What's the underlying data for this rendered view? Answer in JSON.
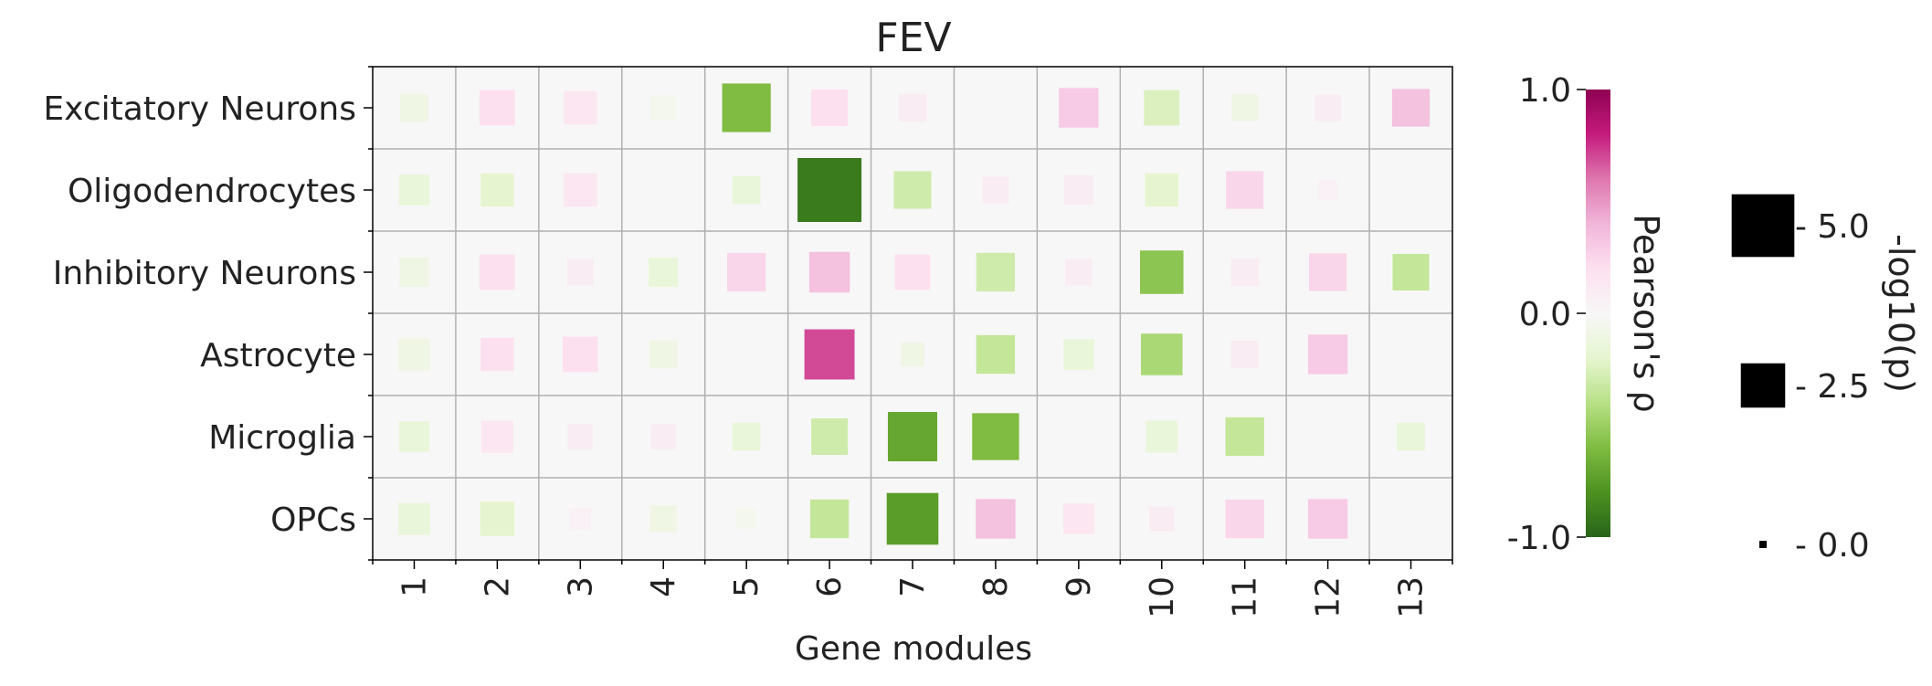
{
  "chart_data": {
    "type": "heatmap",
    "title": "FEV",
    "xlabel": "Gene modules",
    "rows": [
      "Excitatory Neurons",
      "Oligodendrocytes",
      "Inhibitory Neurons",
      "Astrocyte",
      "Microglia",
      "OPCs"
    ],
    "columns": [
      "1",
      "2",
      "3",
      "4",
      "5",
      "6",
      "7",
      "8",
      "9",
      "10",
      "11",
      "12",
      "13"
    ],
    "rho": [
      [
        -0.1,
        0.2,
        0.15,
        -0.05,
        -0.6,
        0.2,
        0.1,
        0.0,
        0.3,
        -0.25,
        -0.1,
        0.1,
        0.35
      ],
      [
        -0.15,
        -0.2,
        0.15,
        0.0,
        -0.15,
        -0.9,
        -0.3,
        0.1,
        0.1,
        -0.2,
        0.25,
        0.05,
        0.0
      ],
      [
        -0.1,
        0.2,
        0.1,
        -0.15,
        0.25,
        0.35,
        0.2,
        -0.3,
        0.1,
        -0.55,
        0.1,
        0.25,
        -0.35
      ],
      [
        -0.1,
        0.2,
        0.2,
        -0.1,
        0.0,
        0.7,
        -0.1,
        -0.35,
        -0.15,
        -0.45,
        0.1,
        0.3,
        0.0
      ],
      [
        -0.15,
        0.15,
        0.1,
        0.1,
        -0.15,
        -0.3,
        -0.7,
        -0.6,
        0.0,
        -0.15,
        -0.35,
        0.0,
        -0.15
      ],
      [
        -0.15,
        -0.2,
        0.05,
        -0.1,
        -0.05,
        -0.35,
        -0.75,
        0.35,
        0.15,
        0.1,
        0.25,
        0.3,
        0.0
      ]
    ],
    "neg_log10_p": [
      [
        1.0,
        1.6,
        1.4,
        0.8,
        3.0,
        1.7,
        1.0,
        0.0,
        2.0,
        1.6,
        0.9,
        0.9,
        1.8
      ],
      [
        1.2,
        1.4,
        1.4,
        0.2,
        1.0,
        5.2,
        1.8,
        0.9,
        1.1,
        1.4,
        1.8,
        0.5,
        0.0
      ],
      [
        1.1,
        1.6,
        0.9,
        1.1,
        1.9,
        2.1,
        1.6,
        1.9,
        0.9,
        2.4,
        1.0,
        1.8,
        1.7
      ],
      [
        1.3,
        1.4,
        1.6,
        1.0,
        0.4,
        3.2,
        0.7,
        1.9,
        1.2,
        2.2,
        1.0,
        2.0,
        0.0
      ],
      [
        1.2,
        1.3,
        0.8,
        0.8,
        1.0,
        1.7,
        3.1,
        2.8,
        0.4,
        1.3,
        1.9,
        0.2,
        1.0
      ],
      [
        1.3,
        1.5,
        0.6,
        0.9,
        0.5,
        1.9,
        3.4,
        2.0,
        1.2,
        0.8,
        1.9,
        2.0,
        0.0
      ]
    ],
    "colorbar": {
      "label": "Pearson's ρ",
      "ticks": [
        "1.0",
        "0.0",
        "-1.0"
      ],
      "range": [
        -1.0,
        1.0
      ],
      "colors": [
        "#276419",
        "#4d9221",
        "#7fbc41",
        "#b8e186",
        "#e6f5d0",
        "#f7f7f7",
        "#fde0ef",
        "#f1b6da",
        "#de77ae",
        "#c51b7d",
        "#8e0152"
      ]
    },
    "size_legend": {
      "label": "-log10(p)",
      "ticks": [
        "5.0",
        "2.5",
        "0.0"
      ],
      "values": [
        5.0,
        2.5,
        0.0
      ]
    },
    "grid": true,
    "background": "#f7f7f7"
  }
}
